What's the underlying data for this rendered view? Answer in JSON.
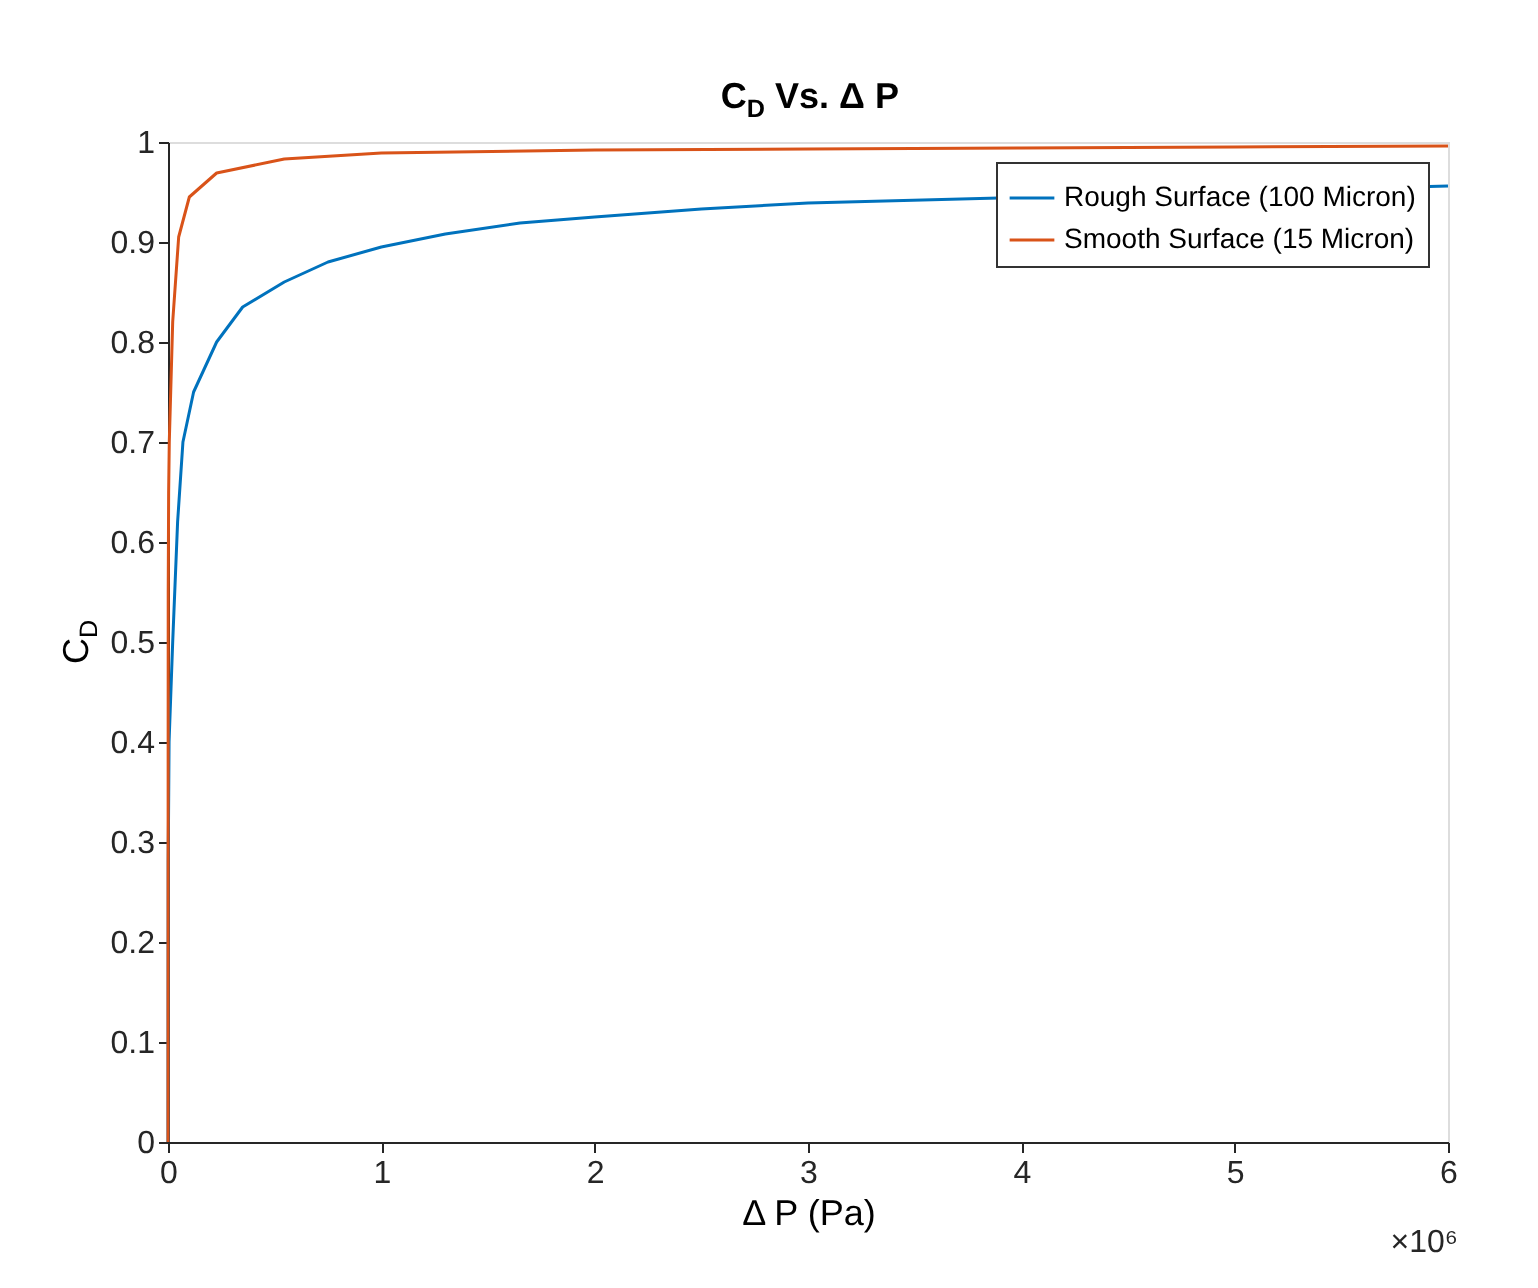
{
  "chart_data": {
    "type": "line",
    "title": "C$_{D}$ Vs. Δ P",
    "xlabel": "Δ P (Pa)",
    "ylabel": "C$_{D}$",
    "annotations": [
      "×10⁶"
    ],
    "xlim": [
      0,
      6
    ],
    "xticks": [
      0,
      1,
      2,
      3,
      4,
      5,
      6
    ],
    "ylim": [
      0,
      1
    ],
    "yticks": [
      0,
      0.1,
      0.2,
      0.3,
      0.4,
      0.5,
      0.6,
      0.7,
      0.8,
      0.9,
      1
    ],
    "grid": false,
    "legend": "top right",
    "line_style": "solid",
    "marker": "none",
    "series": [
      {
        "name": "Rough Surface (100 Micron)",
        "color": "#0072bd",
        "x": [
          0,
          0.001,
          0.005,
          0.022,
          0.045,
          0.07,
          0.12,
          0.228,
          0.35,
          0.545,
          0.75,
          1,
          1.3,
          1.65,
          2,
          2.5,
          3,
          3.5,
          4,
          4.5,
          5,
          5.5,
          6
        ],
        "values": [
          0,
          0.28,
          0.4,
          0.5,
          0.62,
          0.7,
          0.75,
          0.8,
          0.835,
          0.86,
          0.88,
          0.895,
          0.908,
          0.919,
          0.925,
          0.933,
          0.939,
          null,
          null,
          null,
          null,
          null,
          0.956
        ]
      },
      {
        "name": "Smooth Surface (15 Micron)",
        "color": "#d95319",
        "x": [
          0,
          0.001,
          0.003,
          0.006,
          0.022,
          0.05,
          0.1,
          0.228,
          0.545,
          1,
          2,
          3,
          4,
          5,
          6
        ],
        "values": [
          0,
          0.55,
          0.65,
          0.7,
          0.82,
          0.905,
          0.945,
          0.969,
          0.983,
          0.989,
          0.992,
          0.993,
          0.994,
          0.995,
          0.996
        ]
      }
    ]
  }
}
